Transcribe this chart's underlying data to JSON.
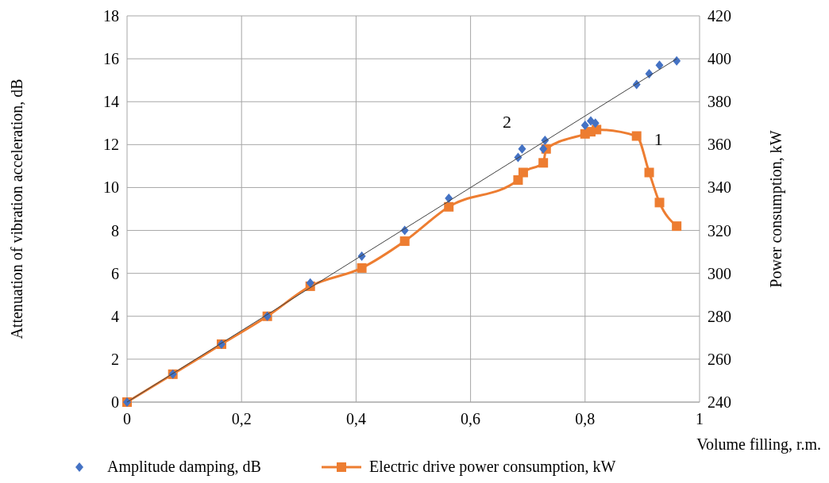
{
  "chart_data": {
    "type": "scatter",
    "xlabel": "Volume filling, r.m.",
    "ylabel": "Attenuation of vibration acceleration, dB",
    "y2label": "Power consumption, kW",
    "xlim": [
      0,
      1
    ],
    "xticks": [
      0,
      {
        "value": 0.2,
        "label": "0,2"
      },
      {
        "value": 0.4,
        "label": "0,4"
      },
      {
        "value": 0.6,
        "label": "0,6"
      },
      {
        "value": 0.8,
        "label": "0,8"
      },
      1
    ],
    "ylim": [
      0,
      18
    ],
    "yticks": [
      0,
      2,
      4,
      6,
      8,
      10,
      12,
      14,
      16,
      18
    ],
    "y2lim": [
      240,
      420
    ],
    "y2ticks": [
      240,
      260,
      280,
      300,
      320,
      340,
      360,
      380,
      400,
      420
    ],
    "grid": true,
    "legend": "bottom",
    "series": [
      {
        "name": "Amplitude damping, dB",
        "marker": "diamond",
        "color": "#4472c4",
        "x": [
          0,
          0.08,
          0.165,
          0.245,
          0.32,
          0.41,
          0.485,
          0.562,
          0.683,
          0.69,
          0.727,
          0.73,
          0.8,
          0.81,
          0.818,
          0.89,
          0.912,
          0.93,
          0.96
        ],
        "values": [
          0,
          1.3,
          2.7,
          4.0,
          5.55,
          6.8,
          8.0,
          9.5,
          11.4,
          11.8,
          11.8,
          12.2,
          12.9,
          13.1,
          13.0,
          14.8,
          15.3,
          15.7,
          15.9
        ]
      },
      {
        "name": "Electric drive power consumption, kW",
        "type": "line",
        "axis": "y2",
        "marker": "square",
        "color": "#ed7d31",
        "x": [
          0,
          0.08,
          0.165,
          0.245,
          0.32,
          0.41,
          0.485,
          0.562,
          0.683,
          0.692,
          0.727,
          0.732,
          0.8,
          0.81,
          0.82,
          0.89,
          0.912,
          0.93,
          0.96
        ],
        "values": [
          240,
          253,
          267,
          280,
          294,
          302.5,
          315,
          331,
          343.5,
          347,
          351.5,
          358,
          365,
          366,
          367,
          364,
          347,
          333,
          322
        ]
      },
      {
        "type": "line",
        "marker": "none",
        "color": "#404040",
        "x": [
          0,
          0.96
        ],
        "values": [
          0,
          16
        ]
      }
    ],
    "annotations": [
      "2",
      "1"
    ]
  }
}
